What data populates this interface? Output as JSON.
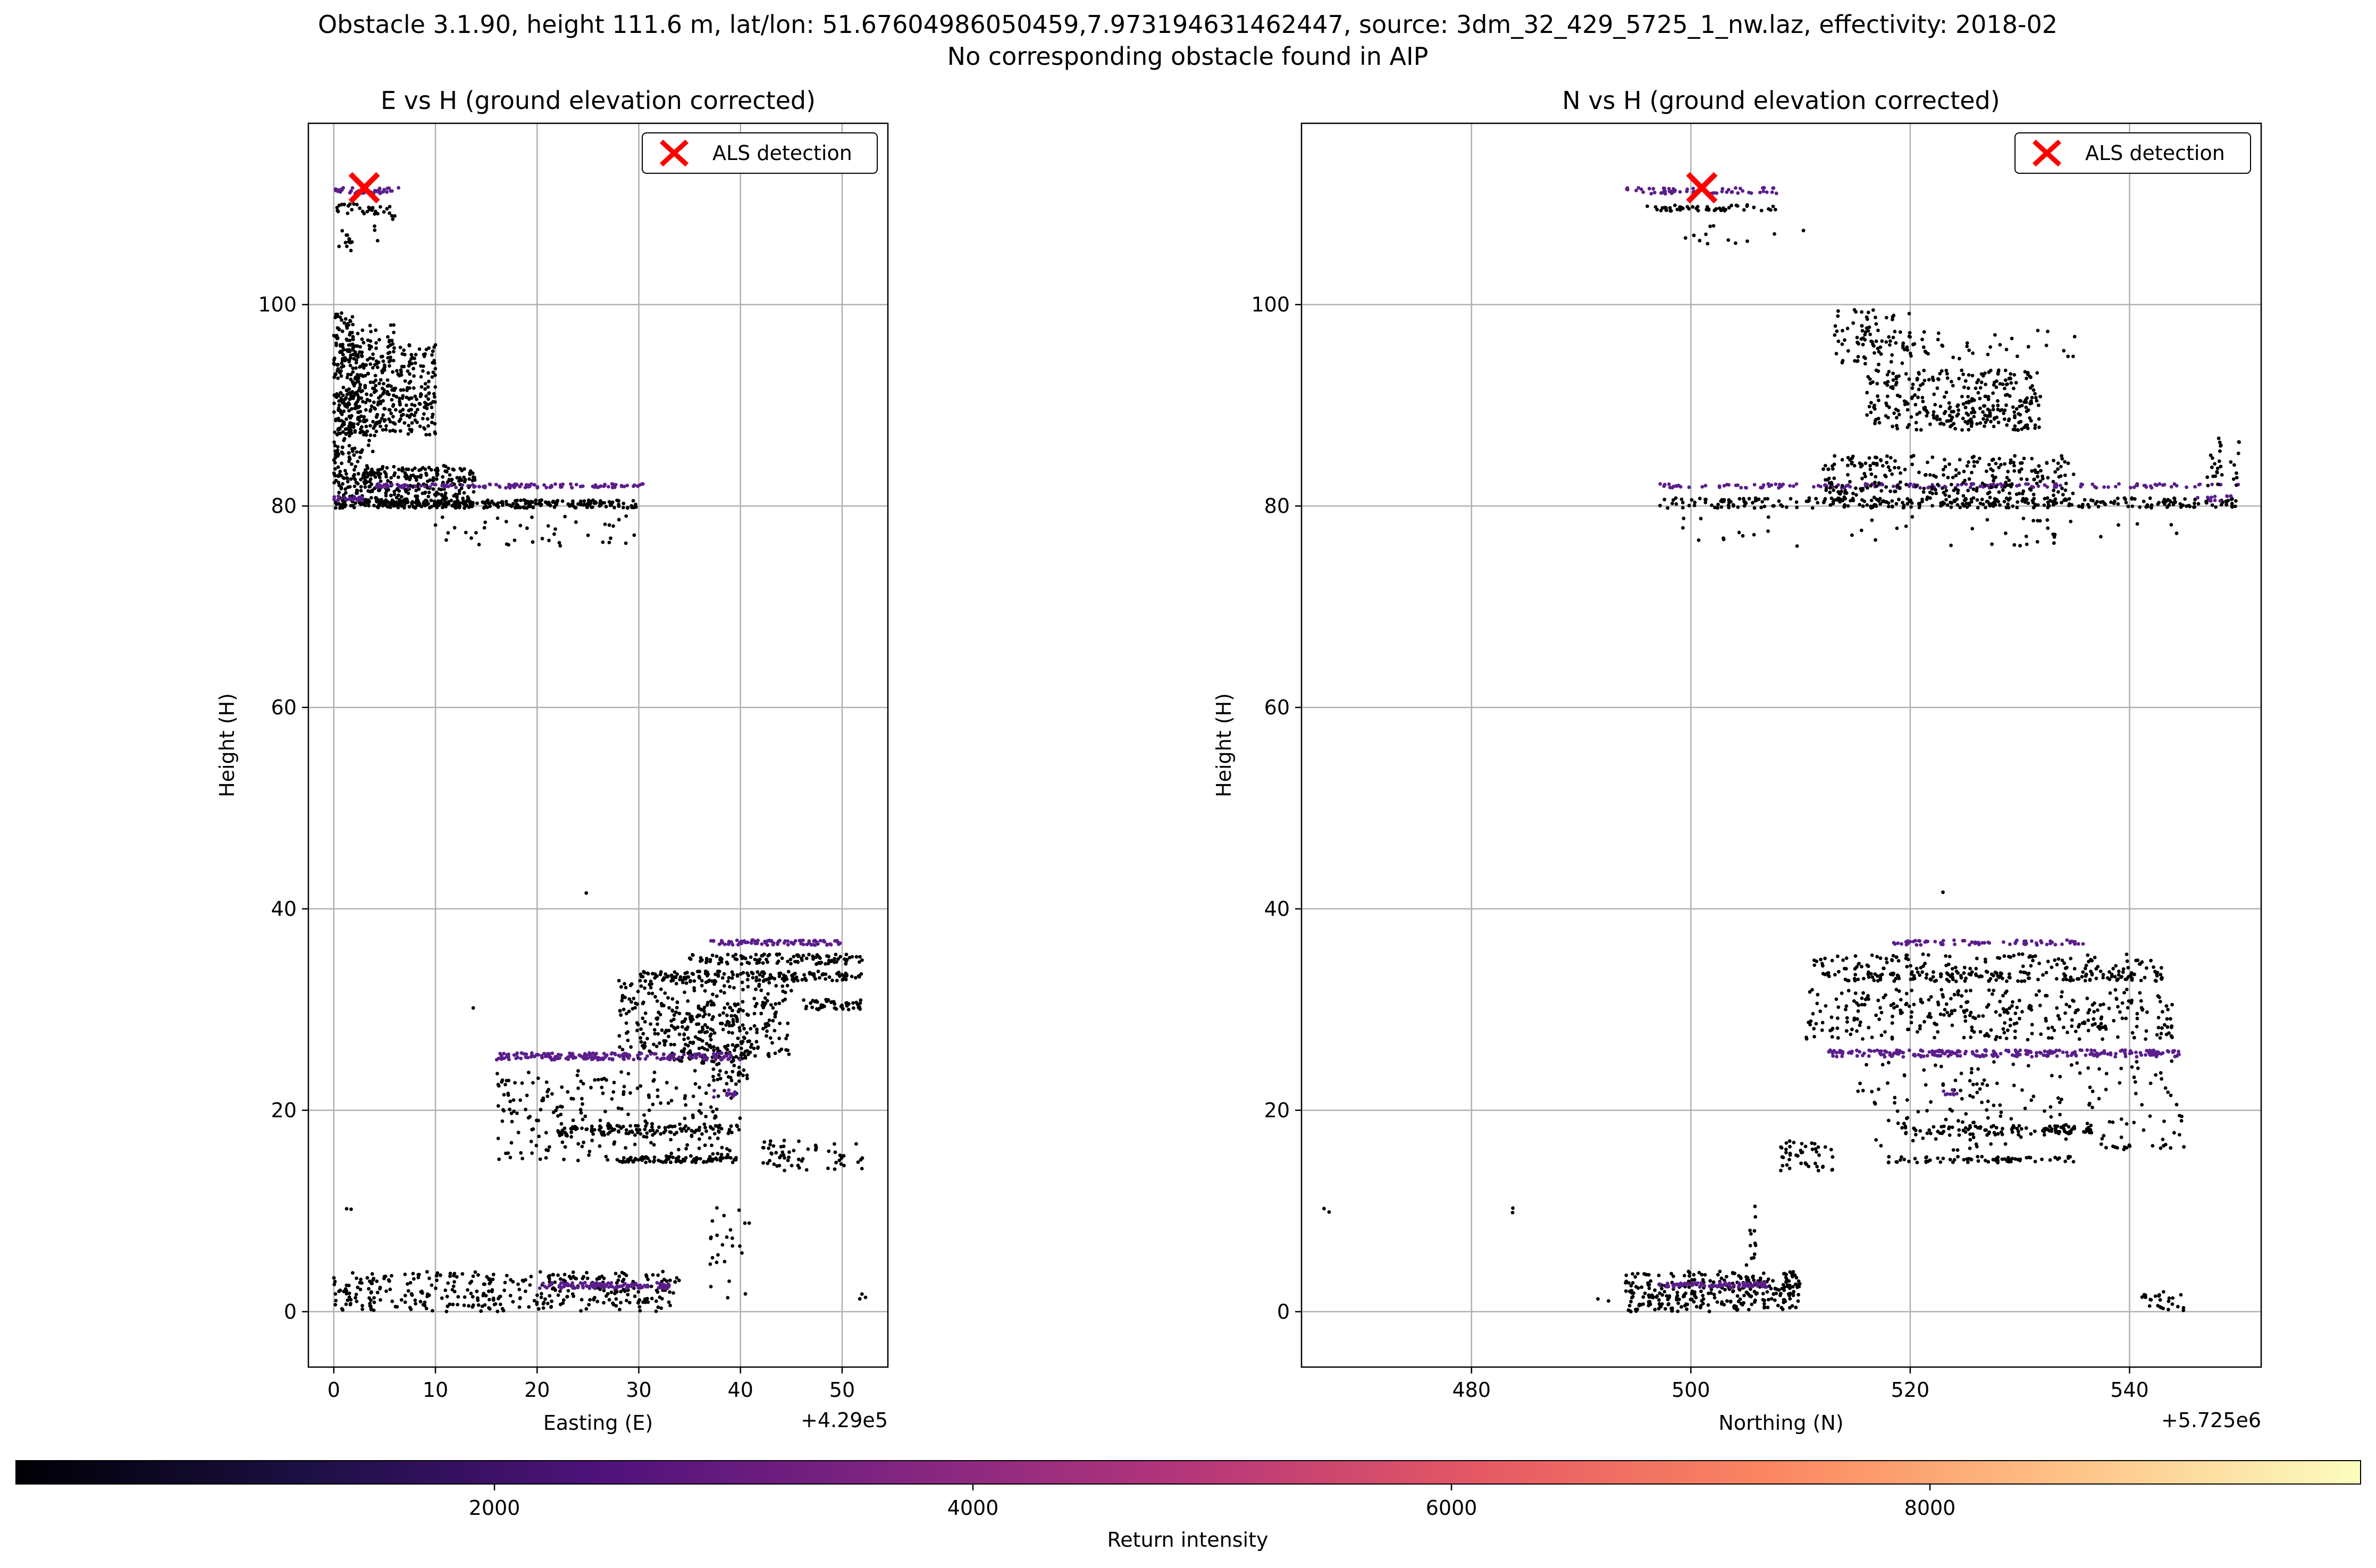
{
  "figure": {
    "title_line1": "Obstacle 3.1.90, height 111.6 m, lat/lon: 51.67604986050459,7.973194631462447, source: 3dm_32_429_5725_1_nw.laz, effectivity: 2018-02",
    "title_line2": "No corresponding obstacle found in AIP"
  },
  "chart_data": [
    {
      "type": "scatter",
      "title": "E vs H (ground elevation corrected)",
      "xlabel": "Easting (E)",
      "ylabel": "Height (H)",
      "x_offset_label": "+4.29e5",
      "xlim": [
        -2.5,
        54.5
      ],
      "ylim": [
        -5.5,
        118
      ],
      "xticks": [
        0,
        10,
        20,
        30,
        40,
        50
      ],
      "yticks": [
        0,
        20,
        40,
        60,
        80,
        100
      ],
      "grid": true,
      "legend": {
        "placement": "upper-right",
        "entries": [
          "ALS detection"
        ]
      },
      "detection": {
        "x": 3,
        "y": 111.6,
        "marker": "x",
        "color": "#ff0000"
      },
      "point_color": "#000000",
      "purple_color": "#5b1e8c",
      "clusters": [
        {
          "x": [
            0,
            6.5
          ],
          "y": [
            111,
            111.6
          ],
          "n": 40,
          "purple": true
        },
        {
          "x": [
            0,
            5.5
          ],
          "y": [
            109,
            110
          ],
          "n": 30
        },
        {
          "x": [
            0,
            2
          ],
          "y": [
            105,
            108
          ],
          "n": 12
        },
        {
          "x": [
            4,
            6
          ],
          "y": [
            106,
            109
          ],
          "n": 6
        },
        {
          "x": [
            0,
            2
          ],
          "y": [
            95,
            99.5
          ],
          "n": 40
        },
        {
          "x": [
            0,
            6
          ],
          "y": [
            96,
            98
          ],
          "n": 30
        },
        {
          "x": [
            0,
            10
          ],
          "y": [
            87,
            96
          ],
          "n": 420
        },
        {
          "x": [
            0,
            4
          ],
          "y": [
            82,
            95
          ],
          "n": 120
        },
        {
          "x": [
            0,
            3
          ],
          "y": [
            84,
            86
          ],
          "n": 25
        },
        {
          "x": [
            0,
            14
          ],
          "y": [
            80,
            84
          ],
          "n": 320
        },
        {
          "x": [
            4,
            31
          ],
          "y": [
            81.8,
            82.2
          ],
          "n": 130,
          "purple": true
        },
        {
          "x": [
            0,
            30
          ],
          "y": [
            79.8,
            80.6
          ],
          "n": 280
        },
        {
          "x": [
            0,
            3
          ],
          "y": [
            80.5,
            81
          ],
          "n": 20,
          "purple": true
        },
        {
          "x": [
            9,
            30
          ],
          "y": [
            76,
            79
          ],
          "n": 40
        },
        {
          "x": [
            24,
            25
          ],
          "y": [
            41.5,
            42
          ],
          "n": 1
        },
        {
          "x": [
            13.5,
            14
          ],
          "y": [
            30,
            30.5
          ],
          "n": 1
        },
        {
          "x": [
            37,
            50
          ],
          "y": [
            36.4,
            36.9
          ],
          "n": 90,
          "purple": true
        },
        {
          "x": [
            35,
            52
          ],
          "y": [
            34.5,
            35.5
          ],
          "n": 110
        },
        {
          "x": [
            30,
            52
          ],
          "y": [
            32.8,
            33.8
          ],
          "n": 160
        },
        {
          "x": [
            46,
            52
          ],
          "y": [
            30,
            31
          ],
          "n": 45
        },
        {
          "x": [
            28,
            45
          ],
          "y": [
            25,
            33
          ],
          "n": 320
        },
        {
          "x": [
            34,
            41
          ],
          "y": [
            23,
            30
          ],
          "n": 100
        },
        {
          "x": [
            16,
            40
          ],
          "y": [
            25,
            25.7
          ],
          "n": 200,
          "purple": true
        },
        {
          "x": [
            16,
            40
          ],
          "y": [
            15,
            24
          ],
          "n": 240
        },
        {
          "x": [
            37,
            40
          ],
          "y": [
            21.3,
            22
          ],
          "n": 12,
          "purple": true
        },
        {
          "x": [
            22,
            40
          ],
          "y": [
            17.5,
            18.5
          ],
          "n": 110
        },
        {
          "x": [
            28,
            40
          ],
          "y": [
            14.8,
            15.4
          ],
          "n": 80
        },
        {
          "x": [
            42,
            52
          ],
          "y": [
            14,
            17
          ],
          "n": 60
        },
        {
          "x": [
            37,
            41
          ],
          "y": [
            0,
            10.5
          ],
          "n": 25
        },
        {
          "x": [
            1,
            2
          ],
          "y": [
            9.8,
            10.3
          ],
          "n": 2
        },
        {
          "x": [
            0,
            34
          ],
          "y": [
            0,
            4
          ],
          "n": 360
        },
        {
          "x": [
            20,
            33
          ],
          "y": [
            2.3,
            2.9
          ],
          "n": 110,
          "purple": true
        },
        {
          "x": [
            51.5,
            52.5
          ],
          "y": [
            1,
            1.8
          ],
          "n": 3
        }
      ]
    },
    {
      "type": "scatter",
      "title": "N vs H (ground elevation corrected)",
      "xlabel": "Northing (N)",
      "ylabel": "Height (H)",
      "x_offset_label": "+5.725e6",
      "xlim": [
        464.5,
        552
      ],
      "ylim": [
        -5.5,
        118
      ],
      "xticks": [
        480,
        500,
        520,
        540
      ],
      "yticks": [
        0,
        20,
        40,
        60,
        80,
        100
      ],
      "grid": true,
      "legend": {
        "placement": "upper-right",
        "entries": [
          "ALS detection"
        ]
      },
      "detection": {
        "x": 501,
        "y": 111.6,
        "marker": "x",
        "color": "#ff0000"
      },
      "point_color": "#000000",
      "purple_color": "#5b1e8c",
      "clusters": [
        {
          "x": [
            494,
            509
          ],
          "y": [
            111,
            111.6
          ],
          "n": 60,
          "purple": true
        },
        {
          "x": [
            496,
            508
          ],
          "y": [
            109.3,
            109.9
          ],
          "n": 50
        },
        {
          "x": [
            497,
            511
          ],
          "y": [
            106,
            108
          ],
          "n": 12
        },
        {
          "x": [
            513,
            520
          ],
          "y": [
            94,
            99.5
          ],
          "n": 70
        },
        {
          "x": [
            515,
            535
          ],
          "y": [
            94.5,
            97.5
          ],
          "n": 50
        },
        {
          "x": [
            516,
            532
          ],
          "y": [
            87.5,
            93.5
          ],
          "n": 260
        },
        {
          "x": [
            522,
            532
          ],
          "y": [
            87.5,
            90
          ],
          "n": 60
        },
        {
          "x": [
            497,
            550
          ],
          "y": [
            81.8,
            82.2
          ],
          "n": 160,
          "purple": true
        },
        {
          "x": [
            512,
            535
          ],
          "y": [
            80.5,
            85
          ],
          "n": 280
        },
        {
          "x": [
            497,
            550
          ],
          "y": [
            79.8,
            80.8
          ],
          "n": 300
        },
        {
          "x": [
            546,
            550
          ],
          "y": [
            80.5,
            81
          ],
          "n": 12,
          "purple": true
        },
        {
          "x": [
            547,
            550
          ],
          "y": [
            82,
            87
          ],
          "n": 30
        },
        {
          "x": [
            497,
            545
          ],
          "y": [
            76,
            79
          ],
          "n": 45
        },
        {
          "x": [
            522,
            523
          ],
          "y": [
            41.5,
            42
          ],
          "n": 1
        },
        {
          "x": [
            518,
            536
          ],
          "y": [
            36.4,
            36.9
          ],
          "n": 70,
          "purple": true
        },
        {
          "x": [
            511,
            543
          ],
          "y": [
            34,
            35.5
          ],
          "n": 110
        },
        {
          "x": [
            512,
            543
          ],
          "y": [
            32.8,
            33.8
          ],
          "n": 180
        },
        {
          "x": [
            510,
            544
          ],
          "y": [
            27,
            32
          ],
          "n": 320
        },
        {
          "x": [
            512,
            545
          ],
          "y": [
            25.3,
            26
          ],
          "n": 250,
          "purple": true
        },
        {
          "x": [
            515,
            545
          ],
          "y": [
            16,
            25
          ],
          "n": 180
        },
        {
          "x": [
            523,
            525
          ],
          "y": [
            21.5,
            22.2
          ],
          "n": 8,
          "purple": true
        },
        {
          "x": [
            519,
            537
          ],
          "y": [
            17.5,
            18.5
          ],
          "n": 100
        },
        {
          "x": [
            518,
            536
          ],
          "y": [
            14.8,
            15.4
          ],
          "n": 70
        },
        {
          "x": [
            508,
            513
          ],
          "y": [
            14,
            17
          ],
          "n": 45
        },
        {
          "x": [
            466.5,
            467.5
          ],
          "y": [
            9.8,
            10.3
          ],
          "n": 2
        },
        {
          "x": [
            483.5,
            484.5
          ],
          "y": [
            9.8,
            10.3
          ],
          "n": 2
        },
        {
          "x": [
            505,
            506
          ],
          "y": [
            0,
            10.5
          ],
          "n": 20
        },
        {
          "x": [
            491.5,
            492.5
          ],
          "y": [
            1,
            1.6
          ],
          "n": 2
        },
        {
          "x": [
            494,
            510
          ],
          "y": [
            0,
            4
          ],
          "n": 300
        },
        {
          "x": [
            497,
            507
          ],
          "y": [
            2.4,
            2.9
          ],
          "n": 90,
          "purple": true
        },
        {
          "x": [
            541,
            545
          ],
          "y": [
            0,
            2
          ],
          "n": 25
        }
      ]
    }
  ],
  "colorbar": {
    "label": "Return intensity",
    "min": 0,
    "max": 9800,
    "ticks": [
      2000,
      4000,
      6000,
      8000
    ],
    "colormap": "magma",
    "stops": [
      "#000004",
      "#1c1044",
      "#4f127b",
      "#812581",
      "#b5367a",
      "#e55964",
      "#fb8761",
      "#fec287",
      "#fcfdbf"
    ]
  }
}
